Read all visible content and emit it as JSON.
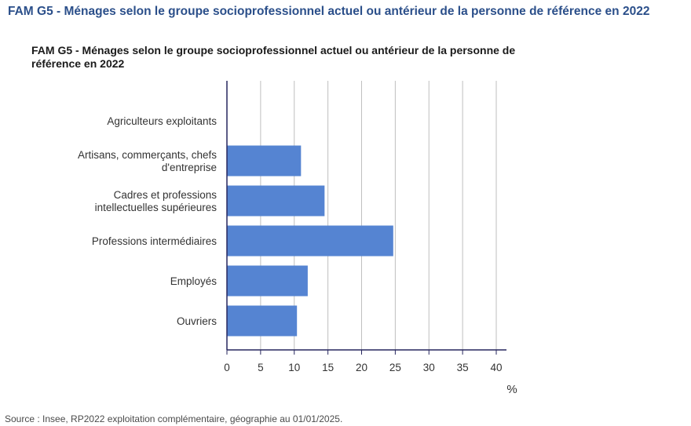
{
  "page": {
    "heading": "FAM G5 - Ménages selon le groupe socioprofessionnel actuel ou antérieur de la personne de référence en 2022",
    "source": "Source : Insee, RP2022 exploitation complémentaire, géographie au 01/01/2025."
  },
  "chart_data": {
    "type": "bar",
    "orientation": "horizontal",
    "title": "FAM G5 - Ménages selon le groupe socioprofessionnel actuel ou antérieur de la personne de référence en 2022",
    "categories": [
      [
        "Agriculteurs exploitants"
      ],
      [
        "Artisans, commerçants, chefs",
        "d'entreprise"
      ],
      [
        "Cadres et professions",
        "intellectuelles supérieures"
      ],
      [
        "Professions intermédiaires"
      ],
      [
        "Employés"
      ],
      [
        "Ouvriers"
      ]
    ],
    "values": [
      0,
      11,
      14.5,
      24.7,
      12,
      10.4
    ],
    "xlabel": "%",
    "ylabel": "",
    "xlim": [
      0,
      41
    ],
    "xticks": [
      "0",
      "5",
      "10",
      "15",
      "20",
      "25",
      "30",
      "35",
      "40"
    ],
    "grid": true,
    "bar_color": "#5584d2",
    "axis_color": "#26265e",
    "grid_color": "#bfbfbf"
  }
}
